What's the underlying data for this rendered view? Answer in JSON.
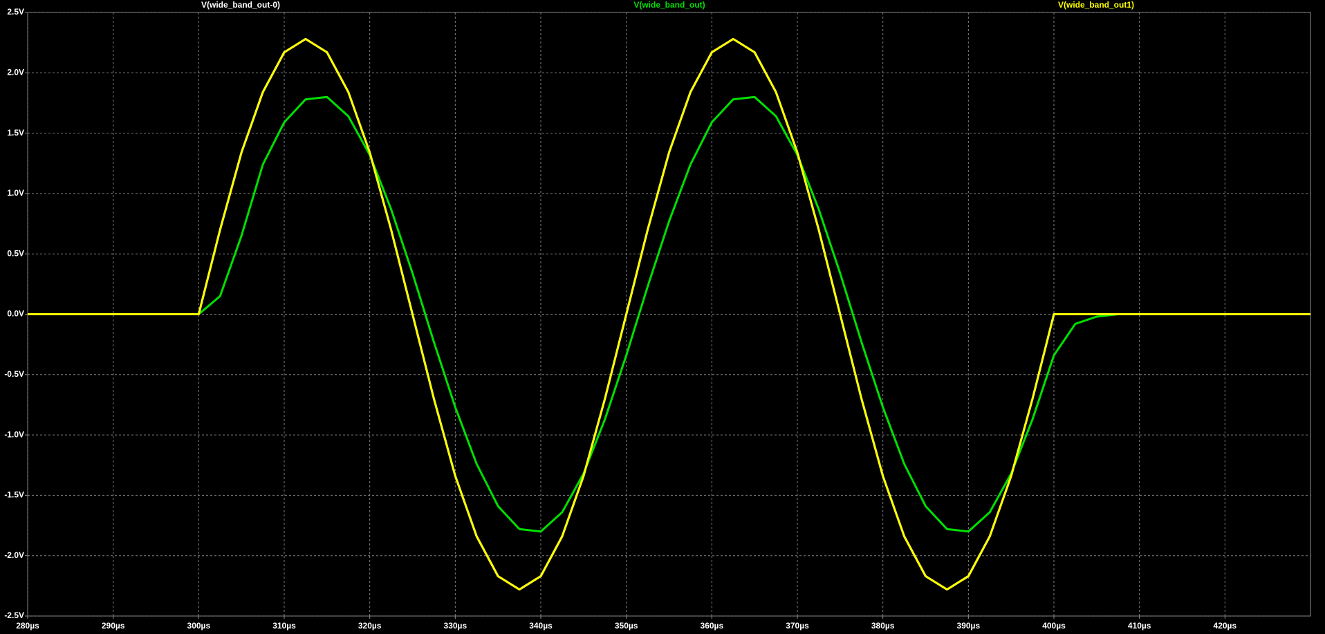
{
  "chart_data": {
    "type": "line",
    "x": [
      280,
      282.5,
      285,
      287.5,
      290,
      292.5,
      295,
      297.5,
      300,
      302.5,
      305,
      307.5,
      310,
      312.5,
      315,
      317.5,
      320,
      322.5,
      325,
      327.5,
      330,
      332.5,
      335,
      337.5,
      340,
      342.5,
      345,
      347.5,
      350,
      352.5,
      355,
      357.5,
      360,
      362.5,
      365,
      367.5,
      370,
      372.5,
      375,
      377.5,
      380,
      382.5,
      385,
      387.5,
      390,
      392.5,
      395,
      397.5,
      400,
      402.5,
      405,
      407.5,
      410,
      412.5,
      415,
      417.5,
      420,
      422.5,
      425,
      427.5,
      430
    ],
    "series": [
      {
        "name": "V(wide_band_out-0)",
        "color": "#ffffff",
        "values": [
          0,
          0,
          0,
          0,
          0,
          0,
          0,
          0,
          0,
          0.7,
          1.34,
          1.84,
          2.17,
          2.28,
          2.17,
          1.84,
          1.34,
          0.7,
          0,
          -0.7,
          -1.34,
          -1.84,
          -2.17,
          -2.28,
          -2.17,
          -1.84,
          -1.34,
          -0.7,
          0,
          0.7,
          1.34,
          1.84,
          2.17,
          2.28,
          2.17,
          1.84,
          1.34,
          0.7,
          0,
          -0.7,
          -1.34,
          -1.84,
          -2.17,
          -2.28,
          -2.17,
          -1.84,
          -1.34,
          -0.7,
          0,
          0,
          0,
          0,
          0,
          0,
          0,
          0,
          0,
          0,
          0,
          0,
          0
        ]
      },
      {
        "name": "V(wide_band_out)",
        "color": "#00e000",
        "values": [
          0,
          0,
          0,
          0,
          0,
          0,
          0,
          0,
          0,
          0.15,
          0.65,
          1.24,
          1.59,
          1.78,
          1.8,
          1.64,
          1.32,
          0.87,
          0.34,
          -0.23,
          -0.77,
          -1.24,
          -1.59,
          -1.78,
          -1.8,
          -1.64,
          -1.32,
          -0.87,
          -0.34,
          0.23,
          0.77,
          1.24,
          1.59,
          1.78,
          1.8,
          1.64,
          1.32,
          0.87,
          0.34,
          -0.23,
          -0.77,
          -1.24,
          -1.59,
          -1.78,
          -1.8,
          -1.64,
          -1.32,
          -0.87,
          -0.34,
          -0.08,
          -0.02,
          0,
          0,
          0,
          0,
          0,
          0,
          0,
          0,
          0,
          0
        ]
      },
      {
        "name": "V(wide_band_out1)",
        "color": "#ffff00",
        "values": [
          0,
          0,
          0,
          0,
          0,
          0,
          0,
          0,
          0,
          0.7,
          1.34,
          1.84,
          2.17,
          2.28,
          2.17,
          1.84,
          1.34,
          0.7,
          0,
          -0.7,
          -1.34,
          -1.84,
          -2.17,
          -2.28,
          -2.17,
          -1.84,
          -1.34,
          -0.7,
          0,
          0.7,
          1.34,
          1.84,
          2.17,
          2.28,
          2.17,
          1.84,
          1.34,
          0.7,
          0,
          -0.7,
          -1.34,
          -1.84,
          -2.17,
          -2.28,
          -2.17,
          -1.84,
          -1.34,
          -0.7,
          0,
          0,
          0,
          0,
          0,
          0,
          0,
          0,
          0,
          0,
          0,
          0,
          0
        ]
      }
    ],
    "xlim": [
      280,
      430
    ],
    "xticks": [
      {
        "value": 280,
        "label": "280µs"
      },
      {
        "value": 290,
        "label": "290µs"
      },
      {
        "value": 300,
        "label": "300µs"
      },
      {
        "value": 310,
        "label": "310µs"
      },
      {
        "value": 320,
        "label": "320µs"
      },
      {
        "value": 330,
        "label": "330µs"
      },
      {
        "value": 340,
        "label": "340µs"
      },
      {
        "value": 350,
        "label": "350µs"
      },
      {
        "value": 360,
        "label": "360µs"
      },
      {
        "value": 370,
        "label": "370µs"
      },
      {
        "value": 380,
        "label": "380µs"
      },
      {
        "value": 390,
        "label": "390µs"
      },
      {
        "value": 400,
        "label": "400µs"
      },
      {
        "value": 410,
        "label": "410µs"
      },
      {
        "value": 420,
        "label": "420µs"
      }
    ],
    "ylim": [
      -2.5,
      2.5
    ],
    "yticks": [
      {
        "value": 2.5,
        "label": "2.5V"
      },
      {
        "value": 2.0,
        "label": "2.0V"
      },
      {
        "value": 1.5,
        "label": "1.5V"
      },
      {
        "value": 1.0,
        "label": "1.0V"
      },
      {
        "value": 0.5,
        "label": "0.5V"
      },
      {
        "value": 0,
        "label": "0.0V"
      },
      {
        "value": -0.5,
        "label": "-0.5V"
      },
      {
        "value": -1.0,
        "label": "-1.0V"
      },
      {
        "value": -1.5,
        "label": "-1.5V"
      },
      {
        "value": -2.0,
        "label": "-2.0V"
      },
      {
        "value": -2.5,
        "label": "-2.5V"
      }
    ],
    "grid": true
  }
}
